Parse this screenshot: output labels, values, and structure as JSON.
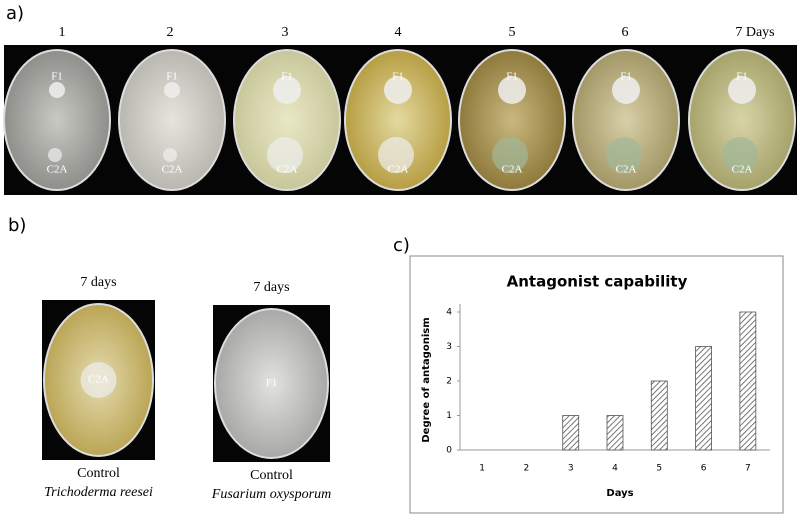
{
  "panel_a": {
    "label": "a)",
    "day_labels": [
      "1",
      "2",
      "3",
      "4",
      "5",
      "6",
      "7  Days"
    ],
    "plate_labels": [
      "F1",
      "C2A"
    ]
  },
  "panel_b": {
    "label": "b)",
    "plates": [
      {
        "title": "7 days",
        "label": "C2A",
        "caption": "Control",
        "species": "Trichoderma reesei"
      },
      {
        "title": "7 days",
        "label": "F1",
        "caption": "Control",
        "species": "Fusarium oxysporum"
      }
    ]
  },
  "chart_data": {
    "type": "bar",
    "panel_label": "c)",
    "title": "Antagonist capability",
    "x_label": "Days",
    "y_label": "Degree of antagonism",
    "categories": [
      "1",
      "2",
      "3",
      "4",
      "5",
      "6",
      "7"
    ],
    "values": [
      0,
      0,
      1,
      1,
      2,
      3,
      4
    ],
    "color": "#555555",
    "ylim": [
      0,
      4
    ],
    "yticks": [
      0,
      1,
      2,
      3,
      4
    ],
    "grid": false
  }
}
